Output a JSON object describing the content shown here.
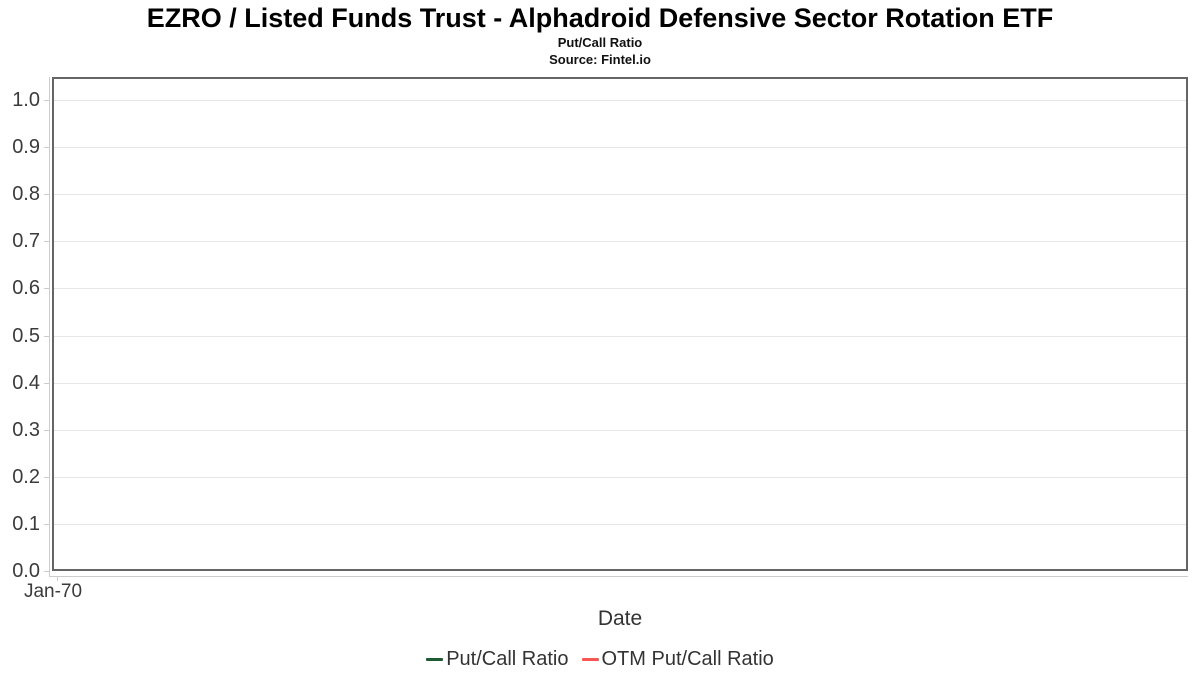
{
  "header": {
    "title": "EZRO / Listed Funds Trust - Alphadroid Defensive Sector Rotation ETF",
    "subtitle": "Put/Call Ratio",
    "source": "Source: Fintel.io"
  },
  "chart_data": {
    "type": "line",
    "title": "EZRO / Listed Funds Trust - Alphadroid Defensive Sector Rotation ETF",
    "subtitle": "Put/Call Ratio",
    "source": "Source: Fintel.io",
    "xlabel": "Date",
    "ylabel": "",
    "x_tick_labels": [
      "Jan-70"
    ],
    "y_tick_labels": [
      "0.0",
      "0.1",
      "0.2",
      "0.3",
      "0.4",
      "0.5",
      "0.6",
      "0.7",
      "0.8",
      "0.9",
      "1.0"
    ],
    "ylim": [
      0.0,
      1.05
    ],
    "grid": true,
    "grid_color": "#e6e6e6",
    "plot_border_color": "#656565",
    "axis_line_color": "#cccccc",
    "legend_position": "bottom",
    "series": [
      {
        "name": "Put/Call Ratio",
        "color": "#1e5a32",
        "x": [],
        "values": []
      },
      {
        "name": "OTM Put/Call Ratio",
        "color": "#fa5550",
        "x": [],
        "values": []
      }
    ]
  }
}
